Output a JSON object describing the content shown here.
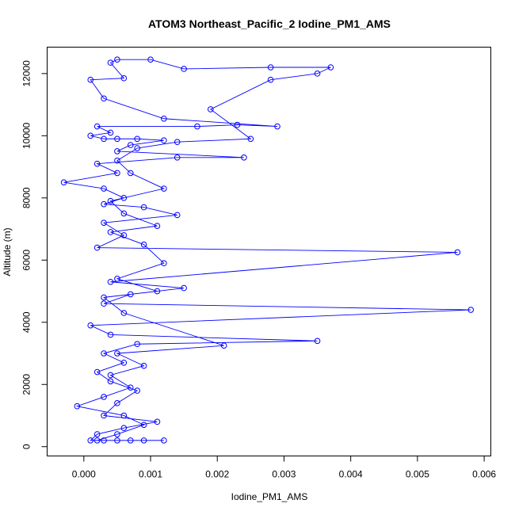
{
  "chart_data": {
    "type": "line",
    "title": "ATOM3 Northeast_Pacific_2 Iodine_PM1_AMS",
    "xlabel": "Iodine_PM1_AMS",
    "ylabel": "Altitude (m)",
    "xlim": [
      -0.00055,
      0.0061
    ],
    "ylim": [
      -300,
      12850
    ],
    "xticks": [
      0.0,
      0.001,
      0.002,
      0.003,
      0.004,
      0.005,
      0.006
    ],
    "xtick_labels": [
      "0.000",
      "0.001",
      "0.002",
      "0.003",
      "0.004",
      "0.005",
      "0.006"
    ],
    "yticks": [
      0,
      2000,
      4000,
      6000,
      8000,
      10000,
      12000
    ],
    "ytick_labels": [
      "0",
      "2000",
      "4000",
      "6000",
      "8000",
      "10000",
      "12000"
    ],
    "grid": false,
    "legend": "none",
    "color": "#0000ff",
    "series": [
      {
        "points": [
          [
            0.0012,
            200
          ],
          [
            0.0009,
            200
          ],
          [
            0.0007,
            200
          ],
          [
            0.0005,
            200
          ],
          [
            0.0003,
            200
          ],
          [
            0.0001,
            200
          ],
          [
            0.0002,
            400
          ],
          [
            0.0006,
            600
          ],
          [
            0.0011,
            800
          ],
          [
            0.0003,
            1000
          ],
          [
            0.0005,
            1400
          ],
          [
            0.0008,
            1800
          ],
          [
            0.0004,
            2100
          ],
          [
            0.0002,
            2400
          ],
          [
            0.0006,
            2700
          ],
          [
            0.0003,
            3000
          ],
          [
            0.0008,
            3300
          ],
          [
            0.0035,
            3400
          ],
          [
            0.0004,
            3600
          ],
          [
            0.0001,
            3900
          ],
          [
            0.0058,
            4400
          ],
          [
            0.0003,
            4600
          ],
          [
            0.0007,
            4900
          ],
          [
            0.0015,
            5100
          ],
          [
            0.0004,
            5300
          ],
          [
            0.0056,
            6250
          ],
          [
            0.0002,
            6400
          ],
          [
            0.0006,
            6800
          ],
          [
            0.0003,
            7200
          ],
          [
            0.0014,
            7450
          ],
          [
            0.0009,
            7700
          ],
          [
            0.0003,
            7800
          ],
          [
            0.0006,
            8000
          ],
          [
            0.0003,
            8300
          ],
          [
            -0.0003,
            8500
          ],
          [
            0.0005,
            8800
          ],
          [
            0.0002,
            9100
          ],
          [
            0.0014,
            9300
          ],
          [
            0.0024,
            9300
          ],
          [
            0.0005,
            9500
          ],
          [
            0.0007,
            9700
          ],
          [
            0.0012,
            9850
          ],
          [
            0.0008,
            9900
          ],
          [
            0.0005,
            9900
          ],
          [
            0.0003,
            9900
          ],
          [
            0.0001,
            10000
          ],
          [
            0.0004,
            10100
          ],
          [
            0.0002,
            10300
          ],
          [
            0.0017,
            10300
          ],
          [
            0.0023,
            10350
          ],
          [
            0.0029,
            10300
          ],
          [
            0.0012,
            10550
          ],
          [
            0.0003,
            11200
          ],
          [
            0.0001,
            11800
          ],
          [
            0.0006,
            11850
          ],
          [
            0.0004,
            12350
          ],
          [
            0.0005,
            12450
          ],
          [
            0.001,
            12450
          ],
          [
            0.0015,
            12150
          ],
          [
            0.0028,
            12200
          ],
          [
            0.0037,
            12200
          ],
          [
            0.0035,
            12000
          ],
          [
            0.0028,
            11800
          ],
          [
            0.0019,
            10850
          ],
          [
            0.0025,
            9900
          ],
          [
            0.0014,
            9800
          ],
          [
            0.0008,
            9600
          ],
          [
            0.0005,
            9200
          ],
          [
            0.0007,
            8800
          ],
          [
            0.0012,
            8300
          ],
          [
            0.0004,
            7900
          ],
          [
            0.0006,
            7500
          ],
          [
            0.0011,
            7100
          ],
          [
            0.0004,
            6900
          ],
          [
            0.0009,
            6500
          ],
          [
            0.0012,
            5900
          ],
          [
            0.0005,
            5400
          ],
          [
            0.0011,
            5000
          ],
          [
            0.0003,
            4800
          ],
          [
            0.0006,
            4300
          ],
          [
            0.0021,
            3250
          ],
          [
            0.0005,
            3000
          ],
          [
            0.0009,
            2600
          ],
          [
            0.0004,
            2300
          ],
          [
            0.0007,
            1900
          ],
          [
            0.0003,
            1600
          ],
          [
            -0.0001,
            1300
          ],
          [
            0.0006,
            1000
          ],
          [
            0.0009,
            700
          ],
          [
            0.0005,
            400
          ],
          [
            0.0002,
            200
          ]
        ]
      }
    ]
  }
}
